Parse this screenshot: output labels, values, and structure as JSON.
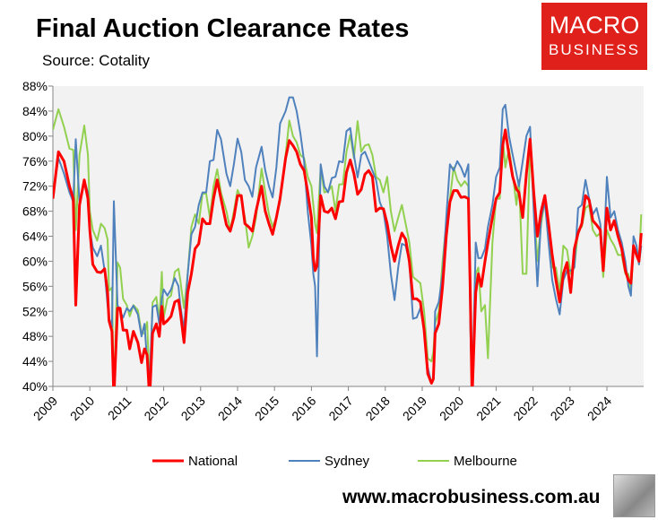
{
  "title": "Final Auction Clearance Rates",
  "source": "Source: Cotality",
  "logo": {
    "line1": "MACRO",
    "line2": "BUSINESS"
  },
  "url": "www.macrobusiness.com.au",
  "chart_data": {
    "type": "line",
    "title": "Final Auction Clearance Rates",
    "ylabel": "",
    "xlabel": "",
    "ylim": [
      40,
      88
    ],
    "xlim": [
      2009,
      2025
    ],
    "yticks": [
      "40%",
      "44%",
      "48%",
      "52%",
      "56%",
      "60%",
      "64%",
      "68%",
      "72%",
      "76%",
      "80%",
      "84%",
      "88%"
    ],
    "xticks": [
      "2009",
      "2010",
      "2011",
      "2012",
      "2013",
      "2014",
      "2015",
      "2016",
      "2017",
      "2018",
      "2019",
      "2020",
      "2021",
      "2022",
      "2023",
      "2024"
    ],
    "legend_position": "bottom",
    "x": [
      2009.0,
      2009.15,
      2009.3,
      2009.45,
      2009.55,
      2009.62,
      2009.72,
      2009.85,
      2009.95,
      2010.0,
      2010.08,
      2010.2,
      2010.3,
      2010.4,
      2010.48,
      2010.52,
      2010.6,
      2010.65,
      2010.75,
      2010.82,
      2010.9,
      2011.0,
      2011.08,
      2011.18,
      2011.3,
      2011.4,
      2011.48,
      2011.55,
      2011.62,
      2011.7,
      2011.8,
      2011.88,
      2011.95,
      2012.0,
      2012.1,
      2012.2,
      2012.3,
      2012.4,
      2012.45,
      2012.55,
      2012.65,
      2012.75,
      2012.85,
      2012.95,
      2013.05,
      2013.15,
      2013.25,
      2013.35,
      2013.45,
      2013.55,
      2013.7,
      2013.8,
      2013.9,
      2014.0,
      2014.1,
      2014.2,
      2014.3,
      2014.4,
      2014.5,
      2014.65,
      2014.75,
      2014.85,
      2014.95,
      2015.05,
      2015.15,
      2015.3,
      2015.4,
      2015.5,
      2015.6,
      2015.7,
      2015.8,
      2015.9,
      2016.0,
      2016.05,
      2016.1,
      2016.15,
      2016.25,
      2016.35,
      2016.45,
      2016.55,
      2016.65,
      2016.75,
      2016.85,
      2016.95,
      2017.05,
      2017.15,
      2017.25,
      2017.35,
      2017.45,
      2017.55,
      2017.65,
      2017.75,
      2017.85,
      2017.95,
      2018.05,
      2018.15,
      2018.25,
      2018.35,
      2018.45,
      2018.55,
      2018.65,
      2018.75,
      2018.85,
      2018.95,
      2019.05,
      2019.15,
      2019.25,
      2019.3,
      2019.35,
      2019.45,
      2019.55,
      2019.65,
      2019.75,
      2019.85,
      2019.95,
      2020.05,
      2020.15,
      2020.25,
      2020.3,
      2020.35,
      2020.45,
      2020.52,
      2020.6,
      2020.7,
      2020.78,
      2020.9,
      2021.0,
      2021.1,
      2021.18,
      2021.25,
      2021.35,
      2021.45,
      2021.55,
      2021.62,
      2021.72,
      2021.82,
      2021.92,
      2022.02,
      2022.12,
      2022.22,
      2022.32,
      2022.42,
      2022.52,
      2022.62,
      2022.72,
      2022.82,
      2022.92,
      2023.02,
      2023.12,
      2023.22,
      2023.32,
      2023.42,
      2023.52,
      2023.62,
      2023.72,
      2023.82,
      2023.9,
      2024.0,
      2024.1,
      2024.2,
      2024.3,
      2024.4,
      2024.5,
      2024.58,
      2024.65,
      2024.72,
      2024.8,
      2024.87,
      2024.93
    ],
    "series": [
      {
        "name": "National",
        "color": "#ff0000",
        "values": [
          70,
          77.5,
          76,
          72,
          70,
          53,
          69,
          73,
          70,
          65,
          59.5,
          58.3,
          58.2,
          58.8,
          55,
          50.5,
          48.8,
          38,
          52.5,
          52.5,
          49,
          49,
          46,
          48.8,
          47,
          43.8,
          46,
          45,
          38,
          48.5,
          50,
          48,
          52.8,
          50,
          50.5,
          51.2,
          53.5,
          53.8,
          52,
          47,
          55,
          58,
          62,
          62.8,
          66.8,
          66,
          66,
          70,
          73,
          70,
          65.8,
          64.8,
          67,
          70.5,
          70.5,
          66,
          65.5,
          64.8,
          68,
          72,
          68,
          66,
          64.3,
          67,
          70,
          76.5,
          79.3,
          78.5,
          77.5,
          75.5,
          74.5,
          71,
          67,
          60.5,
          58.5,
          59.3,
          70.5,
          68,
          67.8,
          68.5,
          66.8,
          69.5,
          69.6,
          74.2,
          76.2,
          74,
          70.7,
          71.5,
          73.9,
          74.5,
          73.5,
          68,
          68.5,
          68.4,
          66,
          62.5,
          60,
          62.5,
          64.5,
          63.5,
          60,
          54,
          54,
          53.5,
          49,
          42,
          40.5,
          41.2,
          48.5,
          50,
          56,
          64,
          69.5,
          71.3,
          71.3,
          70.2,
          70.3,
          70,
          55,
          38,
          55,
          58,
          56,
          60,
          63,
          67,
          70,
          71,
          78.5,
          81,
          77,
          73.5,
          71.5,
          71,
          67,
          74,
          79.5,
          71,
          64,
          68,
          70.5,
          66,
          61,
          57,
          53.5,
          58,
          59.8,
          55,
          62,
          64.5,
          66,
          70.5,
          69.8,
          66.5,
          65.8,
          65,
          58.5,
          68.5,
          65,
          66.5,
          64,
          62,
          58.5,
          57,
          56.5,
          62.5,
          61,
          60,
          64.5
        ]
      },
      {
        "name": "Sydney",
        "color": "#4f81bd",
        "values": [
          70.5,
          76.5,
          74,
          71,
          69.5,
          79.5,
          69.5,
          73,
          71,
          65,
          62.2,
          60.8,
          62.5,
          58.5,
          53,
          51,
          49.5,
          69.6,
          53,
          52,
          51,
          52.5,
          52,
          52.9,
          51.5,
          48,
          50,
          44,
          41,
          52.7,
          53,
          50,
          54,
          55.5,
          54.5,
          55.5,
          57.3,
          56,
          53,
          49,
          58,
          64.3,
          65.5,
          69,
          71,
          71,
          76,
          76.2,
          81,
          79.5,
          74,
          72,
          75.5,
          79.6,
          77.5,
          73,
          72,
          70.3,
          75,
          78.3,
          74.5,
          72,
          70.2,
          75,
          82,
          84,
          86.2,
          86.2,
          84,
          80.5,
          76,
          68,
          62.5,
          58,
          56,
          44.8,
          75.5,
          72,
          71,
          73.3,
          73.5,
          76,
          75.8,
          80.8,
          81.3,
          77,
          73.4,
          77,
          77.5,
          76,
          74.5,
          73,
          69.5,
          68,
          64,
          58,
          53.8,
          59,
          62.8,
          62.5,
          60,
          50.8,
          51,
          52.5,
          49,
          43,
          40.5,
          41,
          52,
          53.5,
          58,
          67,
          75.5,
          74.5,
          76,
          75,
          73.5,
          75.5,
          50,
          38,
          63,
          60.5,
          60.5,
          62,
          65.5,
          69,
          73.5,
          75,
          84.3,
          85,
          80,
          77,
          74,
          72,
          76,
          80,
          81.5,
          68,
          56,
          67,
          69.5,
          63,
          57,
          54,
          51.5,
          57,
          58.5,
          58.5,
          59,
          68.5,
          69,
          73,
          70,
          67.5,
          68.5,
          66,
          59.5,
          73.5,
          67,
          68,
          65,
          63,
          60,
          56,
          54.5,
          64,
          62.5,
          59.5,
          62.5
        ]
      },
      {
        "name": "Melbourne",
        "color": "#92d050",
        "values": [
          81,
          84.3,
          81.5,
          78,
          77.8,
          65,
          77,
          81.7,
          77,
          68,
          65,
          63.3,
          66,
          65.3,
          63.5,
          55.3,
          55.8,
          38,
          59.8,
          59,
          54,
          53,
          51.2,
          53,
          52.2,
          48.5,
          48.5,
          50.3,
          40,
          53.4,
          54.3,
          50.5,
          58.3,
          51,
          54,
          54.5,
          58.3,
          58.8,
          57,
          52.5,
          58,
          65.5,
          67.5,
          66,
          70.8,
          70.8,
          67,
          72,
          74.7,
          71,
          68,
          65,
          68,
          71.4,
          70,
          67,
          62.2,
          64,
          67,
          74.8,
          71,
          67.5,
          65.5,
          67,
          69.5,
          77,
          82.5,
          80,
          79,
          77,
          76.5,
          73.5,
          72,
          69,
          66,
          64.5,
          75,
          71,
          71.2,
          72,
          68,
          72.3,
          72.3,
          77.5,
          80.2,
          76.5,
          82.4,
          77.5,
          78.5,
          78.7,
          77,
          73.5,
          73,
          71,
          73.5,
          68,
          64.8,
          67,
          69,
          66,
          63,
          57.5,
          57,
          56.5,
          52,
          44.5,
          44,
          45.5,
          50,
          52,
          60,
          66,
          70,
          75,
          73,
          72,
          72.8,
          72,
          57,
          38,
          58,
          59,
          52,
          53,
          44.5,
          63,
          70,
          70,
          79.8,
          75,
          78,
          74,
          69,
          73,
          58,
          58,
          78.5,
          69,
          60,
          66,
          70,
          66,
          59,
          59,
          55,
          62.5,
          61.8,
          58,
          59,
          65,
          65.5,
          68.5,
          69,
          65,
          64,
          64.5,
          57.5,
          65,
          63.5,
          62.5,
          61,
          61,
          58,
          58,
          55,
          62,
          62,
          59.5,
          67.5
        ]
      }
    ]
  }
}
